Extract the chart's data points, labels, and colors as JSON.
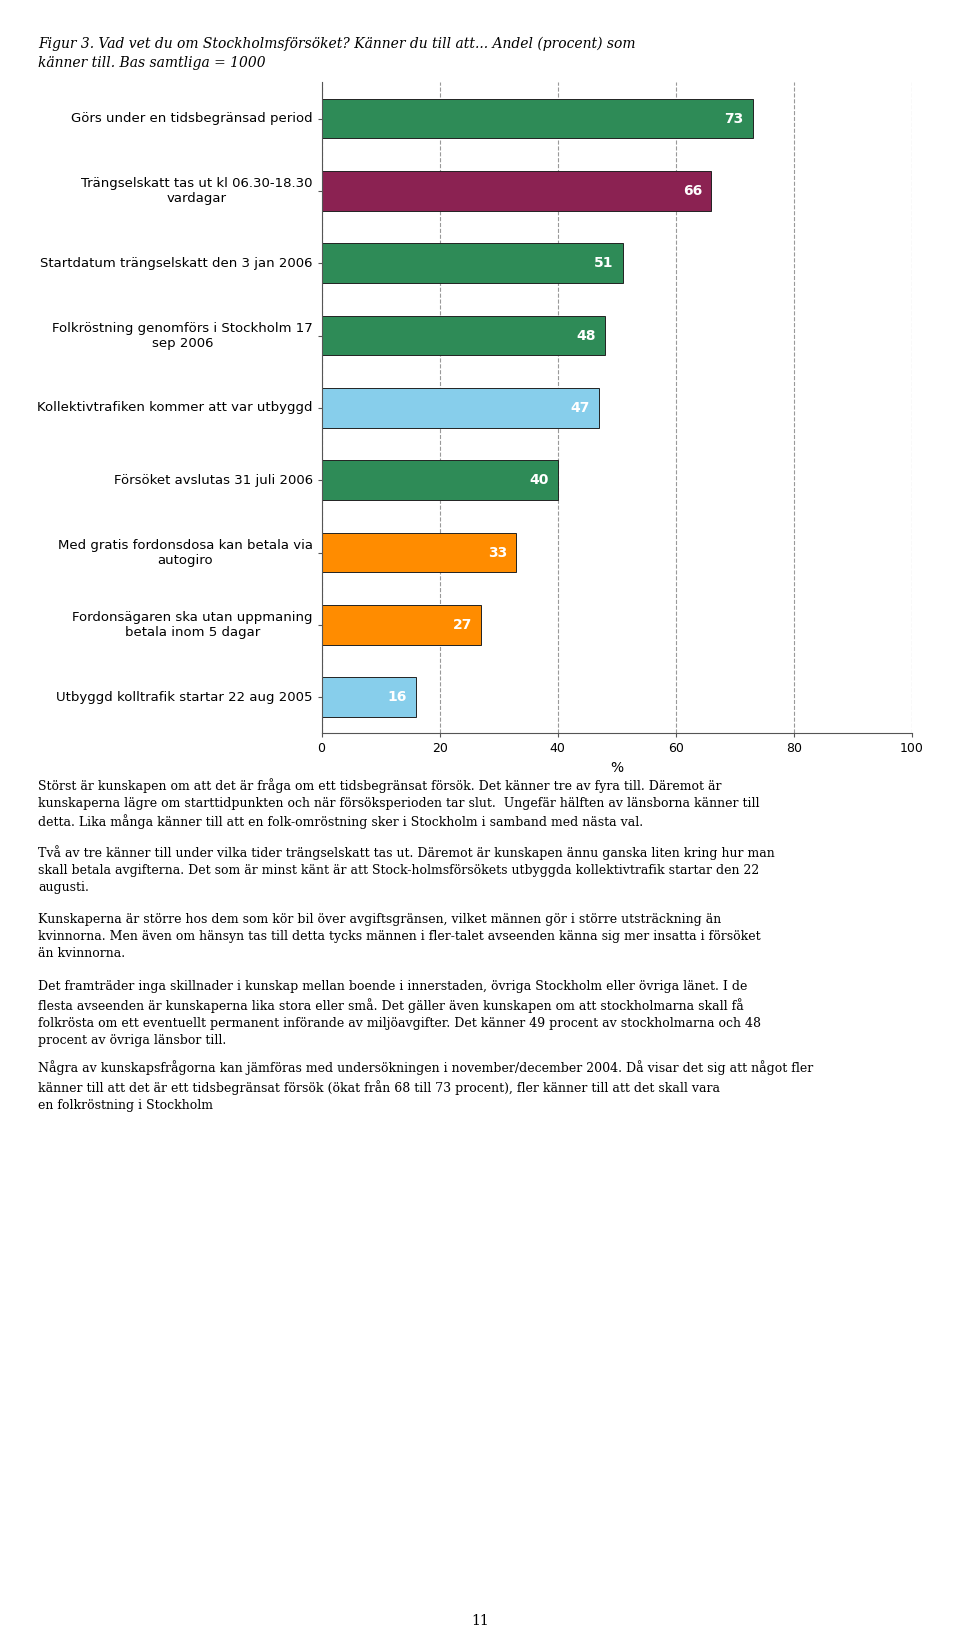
{
  "title_line1": "Figur 3. Vad vet du om Stockholmsförsöket? Känner du till att... Andel (procent) som",
  "title_line2": "känner till. Bas samtliga = 1000",
  "categories": [
    "Görs under en tidsbegränsad period",
    "Trängselskatt tas ut kl 06.30-18.30\nvardagar",
    "Startdatum trängselskatt den 3 jan 2006",
    "Folkröstning genomförs i Stockholm 17\nsep 2006",
    "Kollektivtrafiken kommer att var utbyggd",
    "Försöket avslutas 31 juli 2006",
    "Med gratis fordonsdosa kan betala via\nautogiro",
    "Fordonsägaren ska utan uppmaning\nbetala inom 5 dagar",
    "Utbyggd kolltrafik startar 22 aug 2005"
  ],
  "values": [
    73,
    66,
    51,
    48,
    47,
    40,
    33,
    27,
    16
  ],
  "colors": [
    "#2e8b57",
    "#8b2252",
    "#2e8b57",
    "#2e8b57",
    "#87ceeb",
    "#2e8b57",
    "#ff8c00",
    "#ff8c00",
    "#87ceeb"
  ],
  "xlabel": "%",
  "xlim": [
    0,
    100
  ],
  "xticks": [
    0,
    20,
    40,
    60,
    80,
    100
  ],
  "bar_edge_color": "#222222",
  "value_label_color": "#ffffff",
  "value_label_fontsize": 10,
  "category_fontsize": 9.5,
  "xlabel_fontsize": 10,
  "grid_color": "#999999",
  "background_color": "#ffffff",
  "fig_width": 9.6,
  "fig_height": 16.48,
  "dpi": 100,
  "body_paragraphs": [
    "Störst är kunskapen om att det är fråga om ett tidsbegränsat försök. Det känner tre av fyra till. Däremot är kunskaperna lägre om starttidpunkten och när försöksperioden tar slut.  Ungefär hälften av länsborna känner till detta. Lika många känner till att en folk-omröstning sker i Stockholm i samband med nästa val.",
    "Två av tre känner till under vilka tider trängselskatt tas ut. Däremot är kunskapen ännu ganska liten kring hur man skall betala avgifterna. Det som är minst känt är att Stock-holmsförsökets utbyggda kollektivtrafik startar den 22 augusti.",
    "Kunskaperna är större hos dem som kör bil över avgiftsgränsen, vilket männen gör i större utsträckning än kvinnorna. Men även om hänsyn tas till detta tycks männen i fler-talet avseenden känna sig mer insatta i försöket än kvinnorna.",
    "Det framträder inga skillnader i kunskap mellan boende i innerstaden, övriga Stockholm eller övriga länet. I de flesta avseenden är kunskaperna lika stora eller små. Det gäller även kunskapen om att stockholmarna skall få folkrösta om ett eventuellt permanent införande av miljöavgifter. Det känner 49 procent av stockholmarna och 48 procent av övriga länsbor till.",
    "Några av kunskapsfrågorna kan jämföras med undersökningen i november/december 2004. Då visar det sig att något fler känner till att det är ett tidsbegränsat försök (ökat från 68 till 73 procent), fler känner till att det skall vara en folkröstning i Stockholm"
  ],
  "page_number": "11"
}
